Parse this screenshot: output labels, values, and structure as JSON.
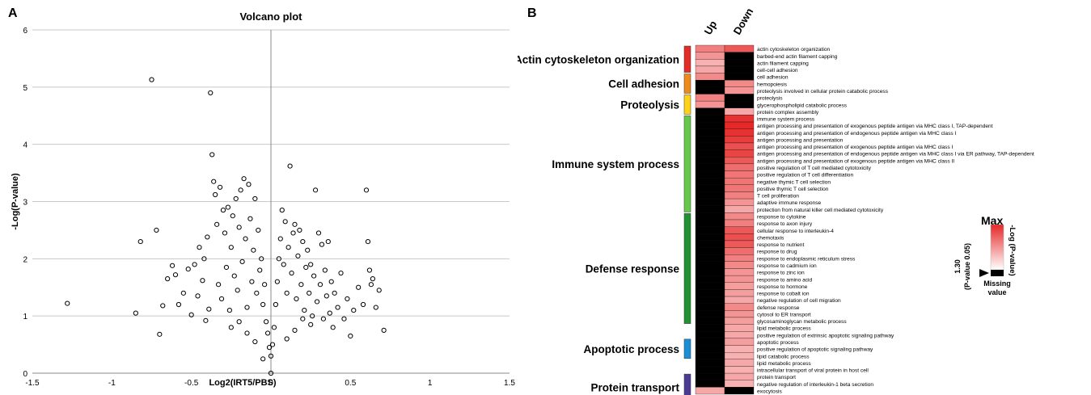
{
  "panels": {
    "a": "A",
    "b": "B"
  },
  "chart_data": [
    {
      "type": "scatter",
      "title": "Volcano plot",
      "xlabel": "Log2(IRT5/PBS)",
      "ylabel": "-Log(P-value)",
      "xlim": [
        -1.5,
        1.5
      ],
      "ylim": [
        0,
        6
      ],
      "xticks": [
        "-1.5",
        "-1",
        "-0.5",
        "0",
        "0.5",
        "1",
        "1.5"
      ],
      "yticks": [
        "0",
        "1",
        "2",
        "3",
        "4",
        "5",
        "6"
      ],
      "grid": "horizontal",
      "marker": "open-circle",
      "points": [
        [
          -1.28,
          1.22
        ],
        [
          -0.85,
          1.05
        ],
        [
          -0.82,
          2.3
        ],
        [
          -0.75,
          5.13
        ],
        [
          -0.72,
          2.5
        ],
        [
          -0.7,
          0.68
        ],
        [
          -0.68,
          1.18
        ],
        [
          -0.65,
          1.65
        ],
        [
          -0.62,
          1.88
        ],
        [
          -0.6,
          1.72
        ],
        [
          -0.58,
          1.2
        ],
        [
          -0.55,
          1.4
        ],
        [
          -0.52,
          1.82
        ],
        [
          -0.5,
          1.02
        ],
        [
          -0.48,
          1.9
        ],
        [
          -0.46,
          1.35
        ],
        [
          -0.45,
          2.2
        ],
        [
          -0.43,
          1.62
        ],
        [
          -0.42,
          2.0
        ],
        [
          -0.41,
          0.92
        ],
        [
          -0.4,
          2.38
        ],
        [
          -0.39,
          1.12
        ],
        [
          -0.38,
          4.9
        ],
        [
          -0.37,
          3.82
        ],
        [
          -0.36,
          3.35
        ],
        [
          -0.35,
          3.12
        ],
        [
          -0.34,
          2.6
        ],
        [
          -0.33,
          1.55
        ],
        [
          -0.32,
          3.25
        ],
        [
          -0.31,
          1.3
        ],
        [
          -0.3,
          2.85
        ],
        [
          -0.29,
          2.45
        ],
        [
          -0.28,
          1.85
        ],
        [
          -0.27,
          2.9
        ],
        [
          -0.26,
          1.1
        ],
        [
          -0.25,
          2.2
        ],
        [
          -0.24,
          2.75
        ],
        [
          -0.23,
          1.7
        ],
        [
          -0.22,
          3.05
        ],
        [
          -0.21,
          1.45
        ],
        [
          -0.2,
          2.55
        ],
        [
          -0.19,
          3.2
        ],
        [
          -0.18,
          1.95
        ],
        [
          -0.17,
          3.4
        ],
        [
          -0.16,
          2.35
        ],
        [
          -0.15,
          1.15
        ],
        [
          -0.14,
          3.3
        ],
        [
          -0.13,
          2.7
        ],
        [
          -0.12,
          1.6
        ],
        [
          -0.11,
          2.15
        ],
        [
          -0.1,
          3.05
        ],
        [
          -0.09,
          1.4
        ],
        [
          -0.08,
          2.5
        ],
        [
          -0.07,
          1.8
        ],
        [
          -0.06,
          2.0
        ],
        [
          -0.05,
          1.2
        ],
        [
          -0.04,
          1.55
        ],
        [
          -0.03,
          0.9
        ],
        [
          -0.02,
          0.7
        ],
        [
          -0.01,
          0.45
        ],
        [
          0.01,
          0.5
        ],
        [
          0.02,
          0.8
        ],
        [
          0.03,
          1.2
        ],
        [
          0.04,
          1.6
        ],
        [
          0.05,
          2.0
        ],
        [
          0.06,
          2.35
        ],
        [
          0.07,
          2.85
        ],
        [
          0.08,
          1.9
        ],
        [
          0.09,
          2.65
        ],
        [
          0.1,
          1.4
        ],
        [
          0.11,
          2.2
        ],
        [
          0.12,
          3.62
        ],
        [
          0.13,
          1.75
        ],
        [
          0.14,
          2.45
        ],
        [
          0.15,
          2.6
        ],
        [
          0.16,
          1.3
        ],
        [
          0.17,
          2.05
        ],
        [
          0.18,
          2.5
        ],
        [
          0.19,
          1.55
        ],
        [
          0.2,
          2.3
        ],
        [
          0.21,
          1.1
        ],
        [
          0.22,
          1.85
        ],
        [
          0.23,
          2.15
        ],
        [
          0.24,
          1.4
        ],
        [
          0.25,
          1.9
        ],
        [
          0.26,
          1.0
        ],
        [
          0.27,
          1.7
        ],
        [
          0.28,
          3.2
        ],
        [
          0.29,
          1.25
        ],
        [
          0.3,
          2.45
        ],
        [
          0.31,
          1.55
        ],
        [
          0.32,
          2.25
        ],
        [
          0.33,
          0.95
        ],
        [
          0.34,
          1.8
        ],
        [
          0.35,
          1.35
        ],
        [
          0.36,
          2.3
        ],
        [
          0.37,
          1.05
        ],
        [
          0.38,
          1.6
        ],
        [
          0.39,
          0.8
        ],
        [
          0.4,
          1.4
        ],
        [
          0.42,
          1.15
        ],
        [
          0.44,
          1.75
        ],
        [
          0.46,
          0.95
        ],
        [
          0.48,
          1.3
        ],
        [
          0.5,
          0.65
        ],
        [
          0.52,
          1.1
        ],
        [
          0.55,
          1.5
        ],
        [
          0.58,
          1.2
        ],
        [
          0.6,
          3.2
        ],
        [
          0.61,
          2.3
        ],
        [
          0.62,
          1.8
        ],
        [
          0.63,
          1.55
        ],
        [
          0.64,
          1.65
        ],
        [
          0.66,
          1.15
        ],
        [
          0.68,
          1.45
        ],
        [
          0.71,
          0.75
        ],
        [
          -0.05,
          0.25
        ],
        [
          0.0,
          0.0
        ],
        [
          0.0,
          0.3
        ],
        [
          -0.1,
          0.55
        ],
        [
          0.1,
          0.6
        ],
        [
          -0.15,
          0.7
        ],
        [
          0.15,
          0.75
        ],
        [
          -0.2,
          0.9
        ],
        [
          0.2,
          0.95
        ],
        [
          -0.25,
          0.8
        ],
        [
          0.25,
          0.85
        ]
      ]
    },
    {
      "type": "heatmap",
      "columns": [
        "Up",
        "Down"
      ],
      "groups": [
        {
          "name": "Actin cytoskeleton organization",
          "color": "#e32b28",
          "rows": [
            0,
            4
          ]
        },
        {
          "name": "Cell adhesion",
          "color": "#f08a1d",
          "rows": [
            4,
            7
          ]
        },
        {
          "name": "Proteolysis",
          "color": "#ffd21a",
          "rows": [
            7,
            10
          ]
        },
        {
          "name": "Immune system process",
          "color": "#66c84c",
          "rows": [
            10,
            24
          ]
        },
        {
          "name": "Defense response",
          "color": "#239036",
          "rows": [
            24,
            40
          ]
        },
        {
          "name": "Apoptotic process",
          "color": "#1a8fd8",
          "rows": [
            42,
            45
          ]
        },
        {
          "name": "Protein transport",
          "color": "#4a3a91",
          "rows": [
            47,
            51
          ]
        }
      ],
      "rows": [
        "actin cytoskeleton organization",
        "barbed-end actin filament capping",
        "actin filament capping",
        "cell-cell adhesion",
        "cell adhesion",
        "hemopoiesis",
        "proteolysis involved in cellular protein catabolic process",
        "proteolysis",
        "glycerophospholipid catabolic process",
        "protein complex assembly",
        "immune system process",
        "antigen processing and presentation of exogenous peptide antigen via MHC class I, TAP-dependent",
        "antigen processing and presentation of endogenous peptide antigen via MHC class I",
        "antigen processing and presentation",
        "antigen processing and presentation of exogenous peptide antigen via MHC class I",
        "antigen processing and presentation of endogenous peptide antigen via MHC class I via ER pathway, TAP-dependent",
        "antigen processing and presentation of exogenous peptide antigen via MHC class II",
        "positive regulation of T cell mediated cytotoxicity",
        "positive regulation of T cell differentiation",
        "negative thymic T cell selection",
        "positive thymic T cell selection",
        "T cell proliferation",
        "adaptive immune response",
        "protection from natural killer cell mediated cytotoxicity",
        "response to cytokine",
        "response to axon injury",
        "cellular response to interleukin-4",
        "chemotaxis",
        "response to nutrient",
        "response to drug",
        "response to endoplasmic reticulum stress",
        "response to cadmium ion",
        "response to zinc ion",
        "response to amino acid",
        "response to hormone",
        "response to cobalt ion",
        "negative regulation of cell migration",
        "defense response",
        "cytosol to ER transport",
        "glycosaminoglycan metabolic process",
        "lipid metabolic process",
        "positive regulation of extrinsic apoptotic signaling pathway",
        "apoptotic process",
        "positive regulation of apoptotic signaling pathway",
        "lipid catabolic process",
        "lipid metabolic process",
        "intracellular transport of viral protein in host cell",
        "protein transport",
        "negative regulation of interleukin-1 beta secretion",
        "exocytosis"
      ],
      "values": [
        [
          0.55,
          0.75
        ],
        [
          0.45,
          0
        ],
        [
          0.3,
          0
        ],
        [
          0.35,
          0
        ],
        [
          0.5,
          0
        ],
        [
          0,
          0.5
        ],
        [
          0,
          0.45
        ],
        [
          0.55,
          0
        ],
        [
          0.45,
          0
        ],
        [
          0,
          0.35
        ],
        [
          0,
          0.95
        ],
        [
          0,
          1.0
        ],
        [
          0,
          0.95
        ],
        [
          0,
          0.9
        ],
        [
          0,
          0.8
        ],
        [
          0,
          0.85
        ],
        [
          0,
          0.75
        ],
        [
          0,
          0.65
        ],
        [
          0,
          0.6
        ],
        [
          0,
          0.6
        ],
        [
          0,
          0.6
        ],
        [
          0,
          0.55
        ],
        [
          0,
          0.45
        ],
        [
          0,
          0.35
        ],
        [
          0,
          0.5
        ],
        [
          0,
          0.55
        ],
        [
          0,
          0.75
        ],
        [
          0,
          0.8
        ],
        [
          0,
          0.75
        ],
        [
          0,
          0.65
        ],
        [
          0,
          0.55
        ],
        [
          0,
          0.5
        ],
        [
          0,
          0.45
        ],
        [
          0,
          0.45
        ],
        [
          0,
          0.4
        ],
        [
          0,
          0.4
        ],
        [
          0,
          0.35
        ],
        [
          0,
          0.5
        ],
        [
          0,
          0.45
        ],
        [
          0,
          0.4
        ],
        [
          0,
          0.35
        ],
        [
          0,
          0.35
        ],
        [
          0,
          0.4
        ],
        [
          0,
          0.3
        ],
        [
          0,
          0.3
        ],
        [
          0,
          0.35
        ],
        [
          0,
          0.3
        ],
        [
          0,
          0.35
        ],
        [
          0,
          0.3
        ],
        [
          0.35,
          0
        ]
      ],
      "legend": {
        "max_label": "Max",
        "threshold_value": "1.30",
        "threshold_note": "(P-value 0.05)",
        "axis_label": "-Log (P-value)",
        "missing_label_1": "Missing",
        "missing_label_2": "value"
      }
    }
  ]
}
